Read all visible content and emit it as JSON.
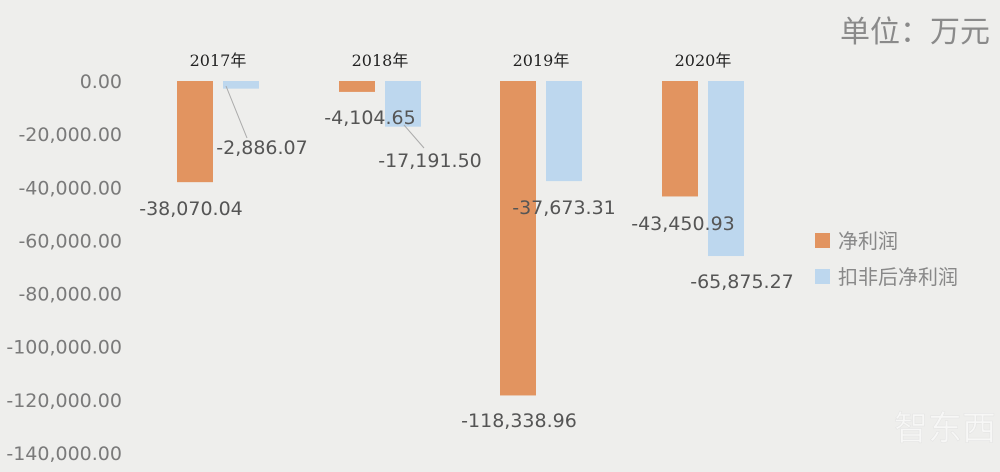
{
  "chart_data": {
    "type": "bar",
    "title": "",
    "unit_note": "单位：万元",
    "xlabel": "",
    "ylabel": "",
    "categories": [
      "2017年",
      "2018年",
      "2019年",
      "2020年"
    ],
    "series": [
      {
        "name": "净利润",
        "color": "#e29460",
        "values": [
          -38070.04,
          -4104.65,
          -118338.96,
          -43450.93
        ],
        "labels": [
          "-38,070.04",
          "-4,104.65",
          "-118,338.96",
          "-43,450.93"
        ]
      },
      {
        "name": "扣非后净利润",
        "color": "#bdd7ee",
        "values": [
          -2886.07,
          -17191.5,
          -37673.31,
          -65875.27
        ],
        "labels": [
          "-2,886.07",
          "-17,191.50",
          "-37,673.31",
          "-65,875.27"
        ]
      }
    ],
    "ylim": [
      -140000,
      0
    ],
    "yticks": [
      0,
      -20000,
      -40000,
      -60000,
      -80000,
      -100000,
      -120000,
      -140000
    ],
    "ytick_labels": [
      "0.00",
      "-20,000.00",
      "-40,000.00",
      "-60,000.00",
      "-80,000.00",
      "-100,000.00",
      "-120,000.00",
      "-140,000.00"
    ],
    "category_axis_position": "top",
    "grid": false,
    "legend_position": "right"
  },
  "watermark": "智东西"
}
